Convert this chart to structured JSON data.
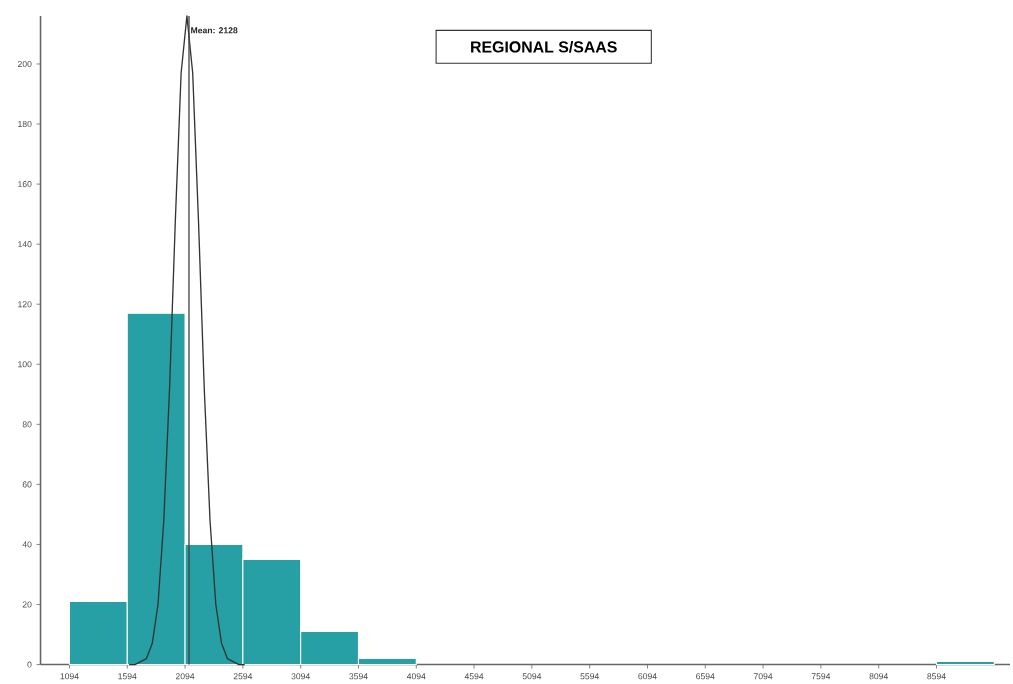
{
  "chart_data": {
    "type": "histogram",
    "title": "REGIONAL S/SAAS",
    "bins": [
      1094,
      1594,
      2094,
      2594,
      3094,
      3594,
      4094,
      4594,
      5094,
      5594,
      6094,
      6594,
      7094,
      7594,
      8094,
      8594,
      9094
    ],
    "values": [
      21,
      117,
      40,
      35,
      11,
      2,
      0,
      0,
      0,
      0,
      0,
      0,
      0,
      0,
      0,
      1
    ],
    "color": "#26a0a4",
    "series": [
      {
        "type": "line",
        "color": "#333333",
        "x": [
          1610,
          1660,
          1710,
          1760,
          1810,
          1860,
          1910,
          1960,
          2010,
          2060,
          2110,
          2160,
          2210,
          2260,
          2310,
          2360,
          2410,
          2460,
          2510,
          2560,
          2610
        ],
        "values": [
          0,
          0,
          1,
          2,
          7,
          20,
          48,
          92,
          148,
          197,
          216,
          197,
          148,
          92,
          48,
          20,
          7,
          2,
          1,
          0,
          0
        ]
      }
    ],
    "ref_lines": [
      {
        "axis": "x",
        "value": 2128,
        "label": "Mean: 2128",
        "color": "#444444"
      }
    ],
    "xlim": [
      844,
      9230
    ],
    "ylim": [
      0,
      216
    ],
    "xticks": [
      1094,
      1594,
      2094,
      2594,
      3094,
      3594,
      4094,
      4594,
      5094,
      5594,
      6094,
      6594,
      7094,
      7594,
      8094,
      8594
    ],
    "yticks": [
      0,
      20,
      40,
      60,
      80,
      100,
      120,
      140,
      160,
      180,
      200
    ],
    "grid": false
  }
}
